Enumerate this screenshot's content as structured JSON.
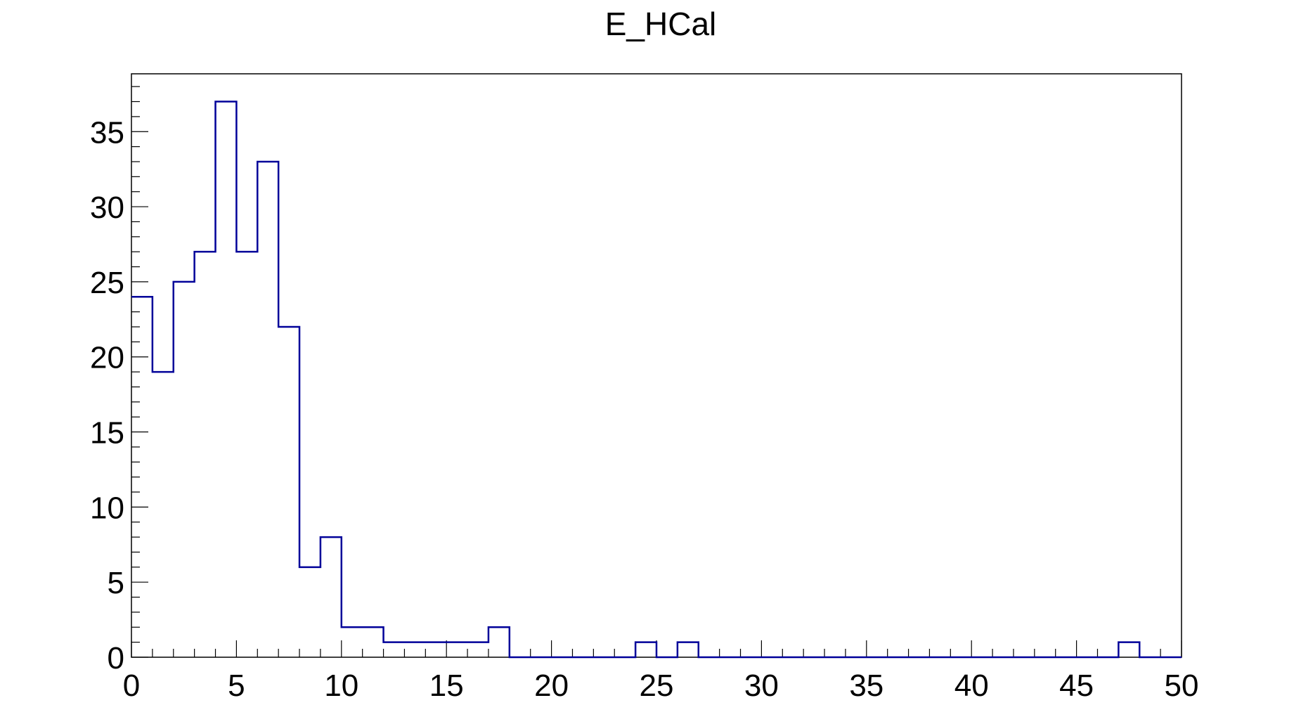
{
  "chart_data": {
    "type": "bar",
    "title": "E_HCal",
    "xlabel": "",
    "ylabel": "",
    "bin_edges": [
      0,
      1,
      2,
      3,
      4,
      5,
      6,
      7,
      8,
      9,
      10,
      11,
      12,
      13,
      14,
      15,
      16,
      17,
      18,
      19,
      20,
      21,
      22,
      23,
      24,
      25,
      26,
      27,
      28,
      29,
      30,
      31,
      32,
      33,
      34,
      35,
      36,
      37,
      38,
      39,
      40,
      41,
      42,
      43,
      44,
      45,
      46,
      47,
      48,
      49,
      50
    ],
    "values": [
      24,
      19,
      25,
      27,
      37,
      27,
      33,
      22,
      6,
      8,
      2,
      2,
      1,
      1,
      1,
      1,
      1,
      2,
      0,
      0,
      0,
      0,
      0,
      0,
      1,
      0,
      1,
      0,
      0,
      0,
      0,
      0,
      0,
      0,
      0,
      0,
      0,
      0,
      0,
      0,
      0,
      0,
      0,
      0,
      0,
      0,
      0,
      1,
      0,
      0
    ],
    "xlim": [
      0,
      50
    ],
    "ylim": [
      0,
      38.85
    ],
    "x_major_ticks": [
      0,
      5,
      10,
      15,
      20,
      25,
      30,
      35,
      40,
      45,
      50
    ],
    "x_tick_labels": [
      "0",
      "5",
      "10",
      "15",
      "20",
      "25",
      "30",
      "35",
      "40",
      "45",
      "50"
    ],
    "y_major_ticks": [
      0,
      5,
      10,
      15,
      20,
      25,
      30,
      35
    ],
    "y_tick_labels": [
      "0",
      "5",
      "10",
      "15",
      "20",
      "25",
      "30",
      "35"
    ],
    "grid": false,
    "line_color": "#000099",
    "axis_color": "#000000"
  }
}
